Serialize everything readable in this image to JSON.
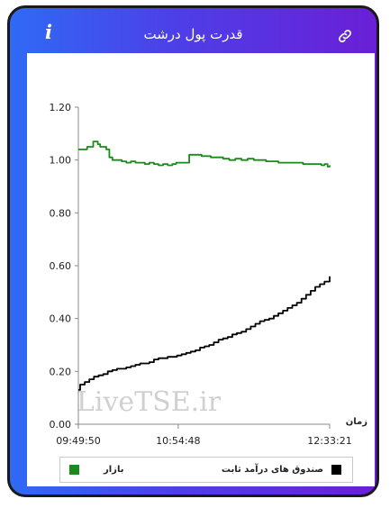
{
  "header": {
    "title": "قدرت پول درشت",
    "info_icon": "info-icon",
    "link_icon": "link-icon"
  },
  "colors": {
    "gradient_start": "#2f6af5",
    "gradient_end": "#6a1fd6",
    "market_series": "#1b8a1b",
    "fixed_income_series": "#000000"
  },
  "watermark": "LiveTSE.ir",
  "chart_data": {
    "type": "line",
    "title": "",
    "xlabel": "زمان",
    "ylabel": "",
    "ylim": [
      0,
      1.2
    ],
    "yticks": [
      "0.00",
      "0.20",
      "0.40",
      "0.60",
      "0.80",
      "1.00",
      "1.20"
    ],
    "xticks": [
      "09:49:50",
      "10:54:48",
      "12:33:21"
    ],
    "x_range": [
      "09:49:50",
      "12:33:21"
    ],
    "grid": false,
    "legend_position": "bottom",
    "series": [
      {
        "name": "بازار",
        "color": "#1b8a1b",
        "x": [
          "09:49:50",
          "09:53:00",
          "09:55:30",
          "09:58:00",
          "09:59:30",
          "10:01:00",
          "10:02:30",
          "10:04:00",
          "10:06:00",
          "10:08:00",
          "10:10:00",
          "10:12:00",
          "10:15:00",
          "10:18:00",
          "10:21:00",
          "10:24:00",
          "10:27:00",
          "10:30:00",
          "10:33:00",
          "10:36:00",
          "10:39:00",
          "10:42:00",
          "10:45:00",
          "10:48:00",
          "10:51:00",
          "10:53:30",
          "10:55:00",
          "10:58:00",
          "11:02:00",
          "11:06:00",
          "11:10:00",
          "11:13:00",
          "11:16:00",
          "11:20:00",
          "11:24:00",
          "11:28:00",
          "11:32:00",
          "11:36:00",
          "11:40:00",
          "11:44:00",
          "11:48:00",
          "11:52:00",
          "11:56:00",
          "12:00:00",
          "12:04:00",
          "12:08:00",
          "12:12:00",
          "12:16:00",
          "12:20:00",
          "12:24:00",
          "12:28:00",
          "12:30:00",
          "12:32:00",
          "12:33:21"
        ],
        "values": [
          1.04,
          1.04,
          1.05,
          1.05,
          1.07,
          1.07,
          1.06,
          1.05,
          1.05,
          1.04,
          1.01,
          1.0,
          1.0,
          0.995,
          0.99,
          0.995,
          0.99,
          0.99,
          0.985,
          0.99,
          0.985,
          0.98,
          0.985,
          0.98,
          0.985,
          0.99,
          0.99,
          0.99,
          1.02,
          1.02,
          1.015,
          1.015,
          1.01,
          1.01,
          1.005,
          1.0,
          1.005,
          1.0,
          1.005,
          1.0,
          1.0,
          0.995,
          0.995,
          0.99,
          0.99,
          0.99,
          0.99,
          0.985,
          0.985,
          0.985,
          0.98,
          0.985,
          0.975,
          0.98
        ]
      },
      {
        "name": "صندوق های درآمد ثابت",
        "color": "#000000",
        "x": [
          "09:49:50",
          "09:51:00",
          "09:54:00",
          "09:57:00",
          "10:00:00",
          "10:03:00",
          "10:06:00",
          "10:09:00",
          "10:12:00",
          "10:15:00",
          "10:18:00",
          "10:21:00",
          "10:24:00",
          "10:27:00",
          "10:30:00",
          "10:33:00",
          "10:36:00",
          "10:39:00",
          "10:42:00",
          "10:45:00",
          "10:48:00",
          "10:51:00",
          "10:54:00",
          "10:57:00",
          "11:00:00",
          "11:03:00",
          "11:06:00",
          "11:09:00",
          "11:12:00",
          "11:15:00",
          "11:18:00",
          "11:21:00",
          "11:24:00",
          "11:27:00",
          "11:30:00",
          "11:33:00",
          "11:36:00",
          "11:39:00",
          "11:42:00",
          "11:45:00",
          "11:48:00",
          "11:51:00",
          "11:54:00",
          "11:57:00",
          "12:00:00",
          "12:03:00",
          "12:06:00",
          "12:09:00",
          "12:12:00",
          "12:15:00",
          "12:18:00",
          "12:21:00",
          "12:24:00",
          "12:27:00",
          "12:30:00",
          "12:33:21"
        ],
        "values": [
          0.13,
          0.15,
          0.16,
          0.17,
          0.18,
          0.185,
          0.19,
          0.2,
          0.205,
          0.21,
          0.21,
          0.215,
          0.22,
          0.225,
          0.23,
          0.23,
          0.235,
          0.245,
          0.25,
          0.25,
          0.255,
          0.255,
          0.26,
          0.265,
          0.27,
          0.275,
          0.28,
          0.29,
          0.295,
          0.3,
          0.31,
          0.32,
          0.325,
          0.33,
          0.34,
          0.345,
          0.35,
          0.36,
          0.37,
          0.38,
          0.39,
          0.395,
          0.4,
          0.41,
          0.42,
          0.43,
          0.44,
          0.45,
          0.46,
          0.475,
          0.49,
          0.505,
          0.52,
          0.53,
          0.54,
          0.56
        ]
      }
    ]
  }
}
